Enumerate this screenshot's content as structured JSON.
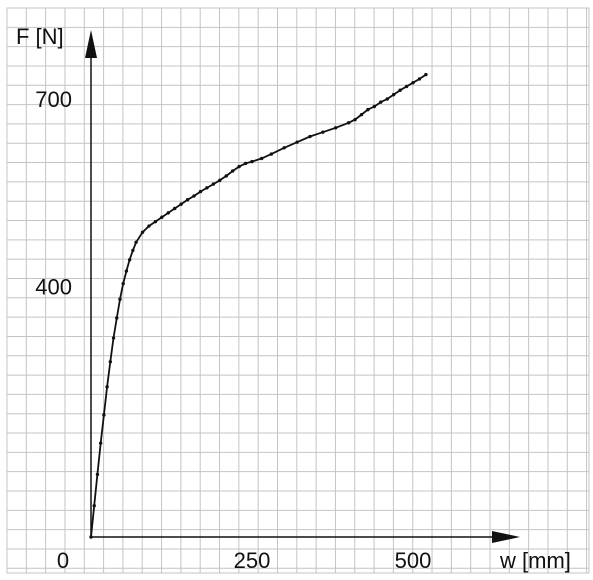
{
  "chart_data": {
    "type": "line",
    "title": "",
    "xlabel": "w [mm]",
    "ylabel": "F [N]",
    "xlim": [
      0,
      620
    ],
    "ylim": [
      0,
      800
    ],
    "grid": true,
    "x_ticks": [
      {
        "value": 0,
        "label": "0"
      },
      {
        "value": 250,
        "label": "250"
      },
      {
        "value": 500,
        "label": "500"
      }
    ],
    "y_ticks": [
      {
        "value": 400,
        "label": "400"
      },
      {
        "value": 700,
        "label": "700"
      }
    ],
    "series": [
      {
        "x": [
          0,
          5,
          10,
          15,
          20,
          25,
          30,
          35,
          40,
          45,
          50,
          55,
          60,
          65,
          70,
          80,
          90,
          100,
          110,
          120,
          130,
          140,
          150,
          160,
          170,
          180,
          190,
          200,
          210,
          220,
          230,
          240,
          250,
          265,
          280,
          300,
          320,
          340,
          360,
          380,
          400,
          410,
          420,
          430,
          440,
          450,
          460,
          470,
          480,
          490,
          500,
          510,
          520
        ],
        "y": [
          0,
          50,
          100,
          150,
          195,
          240,
          280,
          318,
          350,
          380,
          405,
          425,
          443,
          458,
          471,
          487,
          497,
          504,
          511,
          518,
          525,
          532,
          539,
          545,
          552,
          558,
          564,
          570,
          577,
          585,
          592,
          597,
          600,
          605,
          612,
          622,
          631,
          640,
          647,
          654,
          662,
          667,
          675,
          683,
          688,
          695,
          700,
          707,
          714,
          720,
          726,
          732,
          739
        ],
        "color": "#111111",
        "point_color": "#111111"
      }
    ]
  }
}
